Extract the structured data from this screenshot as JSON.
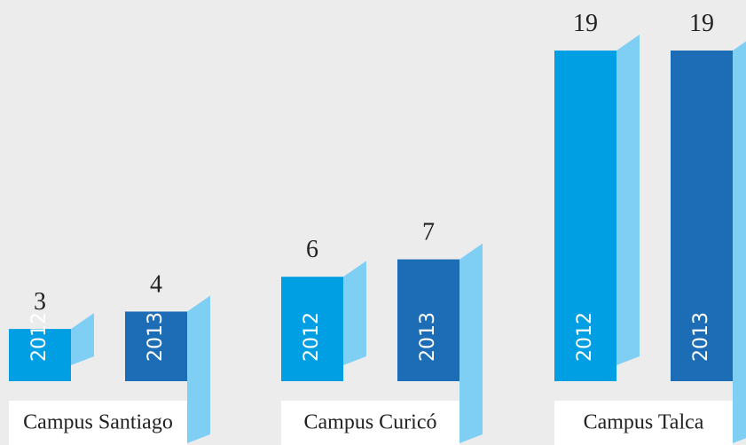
{
  "chart_data": {
    "type": "bar",
    "categories": [
      "Campus Santiago",
      "Campus Curicó",
      "Campus Talca"
    ],
    "series": [
      {
        "name": "2012",
        "color": "#009fe3",
        "values": [
          3,
          6,
          19
        ]
      },
      {
        "name": "2013",
        "color": "#1d6db6",
        "values": [
          4,
          7,
          19
        ]
      }
    ]
  }
}
